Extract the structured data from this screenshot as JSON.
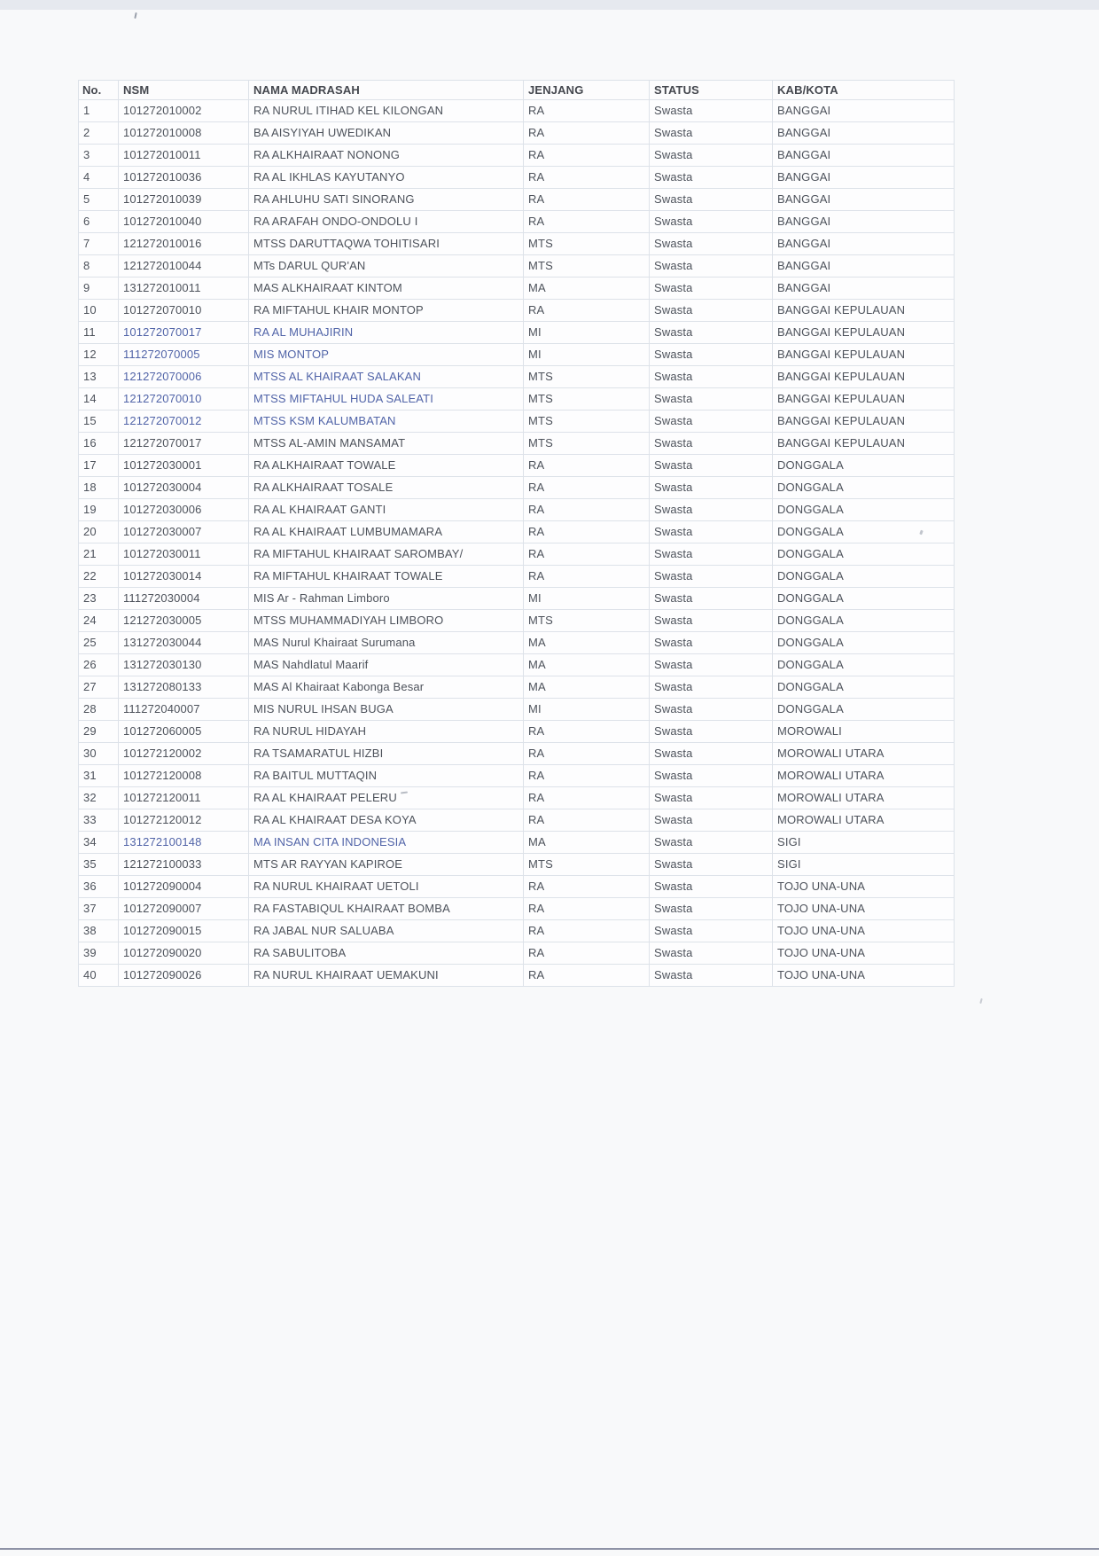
{
  "colors": {
    "page_background": "#f8f9fa",
    "top_strip": "#e6e9ef",
    "bottom_line": "#8e93a6",
    "table_border": "#dde2e9",
    "ink": "#4d525b",
    "ink_tint_blue": "#5164a8"
  },
  "table": {
    "columns": [
      {
        "key": "no",
        "label": "No."
      },
      {
        "key": "nsm",
        "label": "NSM"
      },
      {
        "key": "nama",
        "label": "NAMA MADRASAH"
      },
      {
        "key": "jenjang",
        "label": "JENJANG"
      },
      {
        "key": "status",
        "label": "STATUS"
      },
      {
        "key": "kab",
        "label": "KAB/KOTA"
      }
    ],
    "rows": [
      {
        "no": "1",
        "nsm": "101272010002",
        "nama": "RA NURUL ITIHAD KEL KILONGAN",
        "jenjang": "RA",
        "status": "Swasta",
        "kab": "BANGGAI",
        "tint": false
      },
      {
        "no": "2",
        "nsm": "101272010008",
        "nama": "BA AISYIYAH UWEDIKAN",
        "jenjang": "RA",
        "status": "Swasta",
        "kab": "BANGGAI",
        "tint": false
      },
      {
        "no": "3",
        "nsm": "101272010011",
        "nama": "RA ALKHAIRAAT NONONG",
        "jenjang": "RA",
        "status": "Swasta",
        "kab": "BANGGAI",
        "tint": false
      },
      {
        "no": "4",
        "nsm": "101272010036",
        "nama": "RA AL IKHLAS KAYUTANYO",
        "jenjang": "RA",
        "status": "Swasta",
        "kab": "BANGGAI",
        "tint": false
      },
      {
        "no": "5",
        "nsm": "101272010039",
        "nama": "RA AHLUHU SATI SINORANG",
        "jenjang": "RA",
        "status": "Swasta",
        "kab": "BANGGAI",
        "tint": false
      },
      {
        "no": "6",
        "nsm": "101272010040",
        "nama": "RA ARAFAH ONDO-ONDOLU I",
        "jenjang": "RA",
        "status": "Swasta",
        "kab": "BANGGAI",
        "tint": false
      },
      {
        "no": "7",
        "nsm": "121272010016",
        "nama": "MTSS DARUTTAQWA TOHITISARI",
        "jenjang": "MTS",
        "status": "Swasta",
        "kab": "BANGGAI",
        "tint": false
      },
      {
        "no": "8",
        "nsm": "121272010044",
        "nama": "MTs DARUL QUR'AN",
        "jenjang": "MTS",
        "status": "Swasta",
        "kab": "BANGGAI",
        "tint": false
      },
      {
        "no": "9",
        "nsm": "131272010011",
        "nama": "MAS ALKHAIRAAT KINTOM",
        "jenjang": "MA",
        "status": "Swasta",
        "kab": "BANGGAI",
        "tint": false
      },
      {
        "no": "10",
        "nsm": "101272070010",
        "nama": "RA MIFTAHUL KHAIR MONTOP",
        "jenjang": "RA",
        "status": "Swasta",
        "kab": "BANGGAI KEPULAUAN",
        "tint": false
      },
      {
        "no": "11",
        "nsm": "101272070017",
        "nama": "RA AL MUHAJIRIN",
        "jenjang": "MI",
        "status": "Swasta",
        "kab": "BANGGAI KEPULAUAN",
        "tint": true
      },
      {
        "no": "12",
        "nsm": "111272070005",
        "nama": "MIS MONTOP",
        "jenjang": "MI",
        "status": "Swasta",
        "kab": "BANGGAI KEPULAUAN",
        "tint": true
      },
      {
        "no": "13",
        "nsm": "121272070006",
        "nama": "MTSS AL KHAIRAAT SALAKAN",
        "jenjang": "MTS",
        "status": "Swasta",
        "kab": "BANGGAI KEPULAUAN",
        "tint": true
      },
      {
        "no": "14",
        "nsm": "121272070010",
        "nama": "MTSS MIFTAHUL HUDA SALEATI",
        "jenjang": "MTS",
        "status": "Swasta",
        "kab": "BANGGAI KEPULAUAN",
        "tint": true
      },
      {
        "no": "15",
        "nsm": "121272070012",
        "nama": "MTSS KSM KALUMBATAN",
        "jenjang": "MTS",
        "status": "Swasta",
        "kab": "BANGGAI KEPULAUAN",
        "tint": true
      },
      {
        "no": "16",
        "nsm": "121272070017",
        "nama": "MTSS AL-AMIN MANSAMAT",
        "jenjang": "MTS",
        "status": "Swasta",
        "kab": "BANGGAI KEPULAUAN",
        "tint": false
      },
      {
        "no": "17",
        "nsm": "101272030001",
        "nama": "RA ALKHAIRAAT TOWALE",
        "jenjang": "RA",
        "status": "Swasta",
        "kab": "DONGGALA",
        "tint": false
      },
      {
        "no": "18",
        "nsm": "101272030004",
        "nama": "RA ALKHAIRAAT TOSALE",
        "jenjang": "RA",
        "status": "Swasta",
        "kab": "DONGGALA",
        "tint": false
      },
      {
        "no": "19",
        "nsm": "101272030006",
        "nama": "RA AL KHAIRAAT GANTI",
        "jenjang": "RA",
        "status": "Swasta",
        "kab": "DONGGALA",
        "tint": false
      },
      {
        "no": "20",
        "nsm": "101272030007",
        "nama": "RA AL KHAIRAAT LUMBUMAMARA",
        "jenjang": "RA",
        "status": "Swasta",
        "kab": "DONGGALA",
        "tint": false
      },
      {
        "no": "21",
        "nsm": "101272030011",
        "nama": "RA MIFTAHUL KHAIRAAT SAROMBAY/",
        "jenjang": "RA",
        "status": "Swasta",
        "kab": "DONGGALA",
        "tint": false
      },
      {
        "no": "22",
        "nsm": "101272030014",
        "nama": "RA MIFTAHUL KHAIRAAT TOWALE",
        "jenjang": "RA",
        "status": "Swasta",
        "kab": "DONGGALA",
        "tint": false
      },
      {
        "no": "23",
        "nsm": "111272030004",
        "nama": "MIS Ar - Rahman Limboro",
        "jenjang": "MI",
        "status": "Swasta",
        "kab": "DONGGALA",
        "tint": false
      },
      {
        "no": "24",
        "nsm": "121272030005",
        "nama": "MTSS MUHAMMADIYAH LIMBORO",
        "jenjang": "MTS",
        "status": "Swasta",
        "kab": "DONGGALA",
        "tint": false
      },
      {
        "no": "25",
        "nsm": "131272030044",
        "nama": "MAS Nurul Khairaat Surumana",
        "jenjang": "MA",
        "status": "Swasta",
        "kab": "DONGGALA",
        "tint": false
      },
      {
        "no": "26",
        "nsm": "131272030130",
        "nama": "MAS Nahdlatul Maarif",
        "jenjang": "MA",
        "status": "Swasta",
        "kab": "DONGGALA",
        "tint": false
      },
      {
        "no": "27",
        "nsm": "131272080133",
        "nama": "MAS Al Khairaat Kabonga Besar",
        "jenjang": "MA",
        "status": "Swasta",
        "kab": "DONGGALA",
        "tint": false
      },
      {
        "no": "28",
        "nsm": "111272040007",
        "nama": "MIS NURUL IHSAN BUGA",
        "jenjang": "MI",
        "status": "Swasta",
        "kab": "DONGGALA",
        "tint": false
      },
      {
        "no": "29",
        "nsm": "101272060005",
        "nama": "RA NURUL HIDAYAH",
        "jenjang": "RA",
        "status": "Swasta",
        "kab": "MOROWALI",
        "tint": false
      },
      {
        "no": "30",
        "nsm": "101272120002",
        "nama": "RA TSAMARATUL HIZBI",
        "jenjang": "RA",
        "status": "Swasta",
        "kab": "MOROWALI UTARA",
        "tint": false
      },
      {
        "no": "31",
        "nsm": "101272120008",
        "nama": "RA BAITUL MUTTAQIN",
        "jenjang": "RA",
        "status": "Swasta",
        "kab": "MOROWALI UTARA",
        "tint": false
      },
      {
        "no": "32",
        "nsm": "101272120011",
        "nama": "RA AL KHAIRAAT PELERU",
        "jenjang": "RA",
        "status": "Swasta",
        "kab": "MOROWALI UTARA",
        "tint": false
      },
      {
        "no": "33",
        "nsm": "101272120012",
        "nama": "RA AL KHAIRAAT DESA KOYA",
        "jenjang": "RA",
        "status": "Swasta",
        "kab": "MOROWALI UTARA",
        "tint": false
      },
      {
        "no": "34",
        "nsm": "131272100148",
        "nama": "MA INSAN CITA INDONESIA",
        "jenjang": "MA",
        "status": "Swasta",
        "kab": "SIGI",
        "tint": true
      },
      {
        "no": "35",
        "nsm": "121272100033",
        "nama": "MTS AR RAYYAN KAPIROE",
        "jenjang": "MTS",
        "status": "Swasta",
        "kab": "SIGI",
        "tint": false
      },
      {
        "no": "36",
        "nsm": "101272090004",
        "nama": "RA NURUL KHAIRAAT UETOLI",
        "jenjang": "RA",
        "status": "Swasta",
        "kab": "TOJO UNA-UNA",
        "tint": false
      },
      {
        "no": "37",
        "nsm": "101272090007",
        "nama": "RA FASTABIQUL KHAIRAAT BOMBA",
        "jenjang": "RA",
        "status": "Swasta",
        "kab": "TOJO UNA-UNA",
        "tint": false
      },
      {
        "no": "38",
        "nsm": "101272090015",
        "nama": "RA JABAL NUR SALUABA",
        "jenjang": "RA",
        "status": "Swasta",
        "kab": "TOJO UNA-UNA",
        "tint": false
      },
      {
        "no": "39",
        "nsm": "101272090020",
        "nama": "RA SABULITOBA",
        "jenjang": "RA",
        "status": "Swasta",
        "kab": "TOJO UNA-UNA",
        "tint": false
      },
      {
        "no": "40",
        "nsm": "101272090026",
        "nama": "RA NURUL KHAIRAAT UEMAKUNI",
        "jenjang": "RA",
        "status": "Swasta",
        "kab": "TOJO UNA-UNA",
        "tint": false
      }
    ]
  }
}
